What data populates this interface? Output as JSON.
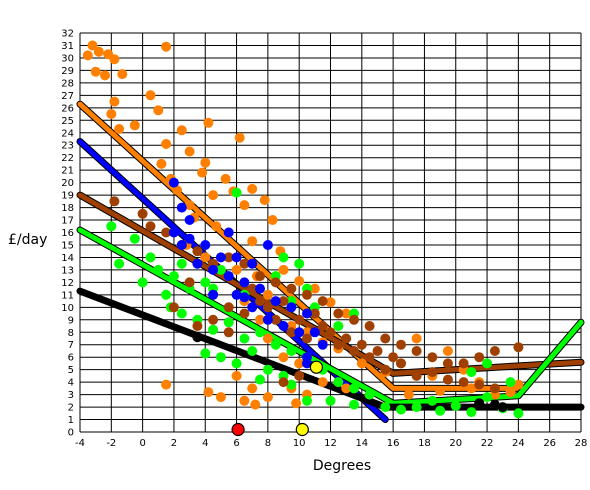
{
  "chart_data": {
    "type": "scatter",
    "title": "",
    "xlabel": "Degrees",
    "ylabel": "£/day",
    "xlim": [
      -4,
      28
    ],
    "ylim": [
      0,
      32
    ],
    "x_ticks": [
      -4,
      -2,
      0,
      2,
      4,
      6,
      8,
      10,
      12,
      14,
      16,
      18,
      20,
      22,
      24,
      26,
      28
    ],
    "y_ticks": [
      0,
      1,
      2,
      3,
      4,
      5,
      6,
      7,
      8,
      9,
      10,
      11,
      12,
      13,
      14,
      15,
      16,
      17,
      18,
      19,
      20,
      21,
      22,
      23,
      24,
      25,
      26,
      27,
      28,
      29,
      30,
      31,
      32
    ],
    "grid": true,
    "legend": "none",
    "series": [
      {
        "color": "#ff8000",
        "points": [
          [
            -3.5,
            30.2
          ],
          [
            -3.2,
            31.0
          ],
          [
            -2.8,
            30.5
          ],
          [
            -2.2,
            30.3
          ],
          [
            -1.8,
            29.9
          ],
          [
            -3.0,
            28.9
          ],
          [
            -2.4,
            28.6
          ],
          [
            -1.3,
            28.7
          ],
          [
            1.5,
            30.9
          ],
          [
            -1.8,
            26.5
          ],
          [
            -2.0,
            25.5
          ],
          [
            -1.5,
            24.3
          ],
          [
            -0.5,
            24.6
          ],
          [
            0.5,
            27.0
          ],
          [
            1.0,
            25.8
          ],
          [
            2.5,
            24.2
          ],
          [
            4.2,
            24.8
          ],
          [
            6.2,
            23.6
          ],
          [
            1.5,
            23.1
          ],
          [
            3.0,
            22.5
          ],
          [
            4.0,
            21.6
          ],
          [
            1.2,
            21.5
          ],
          [
            1.8,
            20.3
          ],
          [
            3.8,
            20.8
          ],
          [
            5.3,
            20.3
          ],
          [
            7.0,
            19.5
          ],
          [
            2.2,
            19.4
          ],
          [
            3.0,
            18.2
          ],
          [
            4.5,
            19.0
          ],
          [
            5.8,
            19.3
          ],
          [
            6.5,
            18.2
          ],
          [
            7.8,
            18.6
          ],
          [
            8.3,
            17.0
          ],
          [
            3.3,
            17.2
          ],
          [
            4.7,
            16.5
          ],
          [
            5.5,
            16.0
          ],
          [
            7.0,
            15.3
          ],
          [
            8.8,
            14.5
          ],
          [
            2.8,
            15.0
          ],
          [
            4.0,
            14.0
          ],
          [
            6.0,
            13.0
          ],
          [
            7.3,
            12.5
          ],
          [
            9.0,
            13.0
          ],
          [
            10.0,
            12.1
          ],
          [
            11.0,
            11.5
          ],
          [
            12.0,
            10.4
          ],
          [
            13.0,
            9.5
          ],
          [
            8.0,
            11.0
          ],
          [
            6.5,
            10.5
          ],
          [
            7.5,
            9.0
          ],
          [
            9.5,
            8.5
          ],
          [
            10.5,
            8.0
          ],
          [
            11.5,
            7.2
          ],
          [
            12.5,
            6.7
          ],
          [
            8.0,
            7.5
          ],
          [
            9.0,
            6.0
          ],
          [
            10.0,
            5.5
          ],
          [
            6.0,
            4.5
          ],
          [
            7.0,
            3.5
          ],
          [
            8.0,
            2.8
          ],
          [
            9.5,
            3.5
          ],
          [
            10.5,
            3.0
          ],
          [
            11.5,
            4.0
          ],
          [
            13.0,
            3.5
          ],
          [
            14.0,
            5.5
          ],
          [
            15.5,
            4.8
          ],
          [
            16.5,
            5.5
          ],
          [
            17.5,
            7.5
          ],
          [
            18.5,
            4.5
          ],
          [
            19.5,
            6.5
          ],
          [
            20.5,
            5.0
          ],
          [
            21.5,
            4.0
          ],
          [
            22.5,
            3.0
          ],
          [
            23.5,
            3.2
          ],
          [
            24.0,
            3.8
          ],
          [
            17.0,
            3.0
          ],
          [
            19.0,
            3.3
          ],
          [
            21.0,
            3.5
          ],
          [
            1.5,
            3.8
          ],
          [
            4.2,
            3.2
          ],
          [
            5.0,
            2.8
          ],
          [
            6.5,
            2.5
          ],
          [
            7.2,
            2.2
          ],
          [
            9.8,
            2.3
          ]
        ]
      },
      {
        "color": "#00ff00",
        "points": [
          [
            -2.0,
            16.5
          ],
          [
            -1.5,
            13.5
          ],
          [
            -0.5,
            15.5
          ],
          [
            0.5,
            14.0
          ],
          [
            1.0,
            13.0
          ],
          [
            2.0,
            12.5
          ],
          [
            3.0,
            12.0
          ],
          [
            1.5,
            11.0
          ],
          [
            0.0,
            12.0
          ],
          [
            4.5,
            11.5
          ],
          [
            6.0,
            19.2
          ],
          [
            1.8,
            10.0
          ],
          [
            2.5,
            9.5
          ],
          [
            3.5,
            9.0
          ],
          [
            4.5,
            8.2
          ],
          [
            5.5,
            8.8
          ],
          [
            6.5,
            7.5
          ],
          [
            7.5,
            8.0
          ],
          [
            8.5,
            7.0
          ],
          [
            9.5,
            6.5
          ],
          [
            4.0,
            6.3
          ],
          [
            5.0,
            6.0
          ],
          [
            6.0,
            5.5
          ],
          [
            7.0,
            6.5
          ],
          [
            8.0,
            5.0
          ],
          [
            9.0,
            4.5
          ],
          [
            10.5,
            6.0
          ],
          [
            11.5,
            5.0
          ],
          [
            12.5,
            4.0
          ],
          [
            13.5,
            3.5
          ],
          [
            7.5,
            4.2
          ],
          [
            9.5,
            3.8
          ],
          [
            10.5,
            2.5
          ],
          [
            12.0,
            2.5
          ],
          [
            13.5,
            2.2
          ],
          [
            14.5,
            3.0
          ],
          [
            15.5,
            2.0
          ],
          [
            16.5,
            1.8
          ],
          [
            17.5,
            2.0
          ],
          [
            18.5,
            2.5
          ],
          [
            19.0,
            1.7
          ],
          [
            20.0,
            2.1
          ],
          [
            21.0,
            1.6
          ],
          [
            22.0,
            2.8
          ],
          [
            23.0,
            1.9
          ],
          [
            24.0,
            1.5
          ],
          [
            12.5,
            8.5
          ],
          [
            13.5,
            9.5
          ],
          [
            11.0,
            10.0
          ],
          [
            9.5,
            10.5
          ],
          [
            8.5,
            12.5
          ],
          [
            9.0,
            14.0
          ],
          [
            10.0,
            13.5
          ],
          [
            10.5,
            11.5
          ],
          [
            5.0,
            13.0
          ],
          [
            6.5,
            11.0
          ],
          [
            3.0,
            11.5
          ],
          [
            2.5,
            13.5
          ],
          [
            4.0,
            12.0
          ],
          [
            22.0,
            5.5
          ],
          [
            23.5,
            4.0
          ],
          [
            21.0,
            4.8
          ]
        ]
      },
      {
        "color": "#a04000",
        "points": [
          [
            -1.8,
            18.5
          ],
          [
            0.0,
            17.5
          ],
          [
            0.5,
            16.5
          ],
          [
            1.5,
            16.0
          ],
          [
            2.5,
            15.0
          ],
          [
            3.5,
            14.5
          ],
          [
            4.5,
            13.5
          ],
          [
            5.5,
            14.0
          ],
          [
            6.5,
            13.5
          ],
          [
            7.5,
            12.5
          ],
          [
            8.5,
            12.0
          ],
          [
            9.5,
            11.5
          ],
          [
            10.5,
            11.0
          ],
          [
            11.5,
            10.5
          ],
          [
            12.5,
            9.5
          ],
          [
            13.5,
            9.0
          ],
          [
            14.5,
            8.5
          ],
          [
            15.5,
            7.5
          ],
          [
            16.5,
            7.0
          ],
          [
            17.5,
            6.5
          ],
          [
            18.5,
            6.0
          ],
          [
            19.5,
            5.5
          ],
          [
            20.5,
            5.5
          ],
          [
            21.5,
            6.0
          ],
          [
            22.5,
            6.5
          ],
          [
            24.0,
            6.8
          ],
          [
            3.0,
            12.0
          ],
          [
            4.5,
            11.0
          ],
          [
            5.5,
            10.0
          ],
          [
            6.5,
            9.5
          ],
          [
            7.5,
            10.5
          ],
          [
            8.5,
            9.0
          ],
          [
            9.5,
            8.0
          ],
          [
            10.5,
            7.5
          ],
          [
            11.5,
            8.5
          ],
          [
            12.5,
            7.0
          ],
          [
            13.5,
            6.5
          ],
          [
            14.5,
            6.0
          ],
          [
            15.5,
            5.0
          ],
          [
            16.5,
            5.5
          ],
          [
            17.5,
            4.5
          ],
          [
            18.5,
            4.8
          ],
          [
            19.5,
            4.2
          ],
          [
            20.5,
            4.0
          ],
          [
            21.5,
            3.8
          ],
          [
            22.5,
            3.5
          ],
          [
            3.5,
            8.5
          ],
          [
            4.5,
            9.0
          ],
          [
            5.5,
            8.0
          ],
          [
            2.0,
            10.0
          ],
          [
            7.0,
            11.5
          ],
          [
            8.0,
            10.0
          ],
          [
            9.0,
            10.5
          ],
          [
            10.0,
            9.0
          ],
          [
            11.0,
            9.5
          ],
          [
            12.0,
            8.0
          ],
          [
            13.0,
            7.5
          ],
          [
            14.0,
            7.0
          ],
          [
            15.0,
            6.5
          ],
          [
            16.0,
            6.0
          ],
          [
            9.0,
            4.0
          ],
          [
            10.0,
            4.5
          ]
        ]
      },
      {
        "color": "#0000ff",
        "points": [
          [
            2.0,
            20.0
          ],
          [
            2.5,
            18.0
          ],
          [
            3.0,
            17.0
          ],
          [
            2.0,
            16.0
          ],
          [
            2.5,
            15.0
          ],
          [
            3.0,
            15.5
          ],
          [
            4.0,
            15.0
          ],
          [
            5.0,
            14.0
          ],
          [
            5.5,
            16.0
          ],
          [
            6.0,
            14.0
          ],
          [
            3.5,
            13.5
          ],
          [
            4.5,
            13.0
          ],
          [
            5.5,
            12.5
          ],
          [
            6.5,
            12.0
          ],
          [
            7.0,
            13.5
          ],
          [
            8.0,
            15.0
          ],
          [
            6.0,
            11.0
          ],
          [
            7.5,
            11.5
          ],
          [
            8.5,
            10.5
          ],
          [
            9.5,
            10.0
          ],
          [
            10.5,
            9.5
          ],
          [
            7.0,
            10.0
          ],
          [
            8.0,
            9.0
          ],
          [
            9.0,
            8.5
          ],
          [
            10.0,
            8.0
          ],
          [
            11.0,
            8.0
          ],
          [
            11.5,
            7.0
          ],
          [
            10.5,
            6.0
          ],
          [
            10.5,
            5.5
          ],
          [
            4.5,
            11.0
          ],
          [
            6.5,
            10.8
          ]
        ]
      },
      {
        "color": "#000000",
        "points": [
          [
            3.5,
            7.6
          ],
          [
            22.5,
            2.2
          ],
          [
            23.0,
            2.0
          ],
          [
            21.5,
            2.3
          ]
        ]
      }
    ],
    "lines": [
      {
        "color": "#ff8000",
        "points": [
          [
            -4,
            26.3
          ],
          [
            16,
            3.5
          ],
          [
            24,
            3.5
          ],
          [
            24,
            3.5
          ]
        ]
      },
      {
        "color": "#0000ff",
        "points": [
          [
            -4,
            23.3
          ],
          [
            15.5,
            1.0
          ]
        ]
      },
      {
        "color": "#a04000",
        "points": [
          [
            -4,
            19.0
          ],
          [
            16,
            4.7
          ],
          [
            28,
            5.6
          ]
        ]
      },
      {
        "color": "#00ff00",
        "points": [
          [
            -4,
            16.2
          ],
          [
            16,
            2.3
          ],
          [
            24,
            2.9
          ],
          [
            28,
            8.8
          ]
        ]
      },
      {
        "color": "#000000",
        "points": [
          [
            -4,
            11.3
          ],
          [
            15.5,
            2.0
          ],
          [
            28,
            2.0
          ]
        ]
      }
    ],
    "markers": [
      {
        "color": "#ff0000",
        "x": 6.1,
        "y": 0.2
      },
      {
        "color": "#ffff00",
        "x": 10.2,
        "y": 0.2
      },
      {
        "color": "#ffff00",
        "x": 11.1,
        "y": 5.2
      }
    ]
  }
}
